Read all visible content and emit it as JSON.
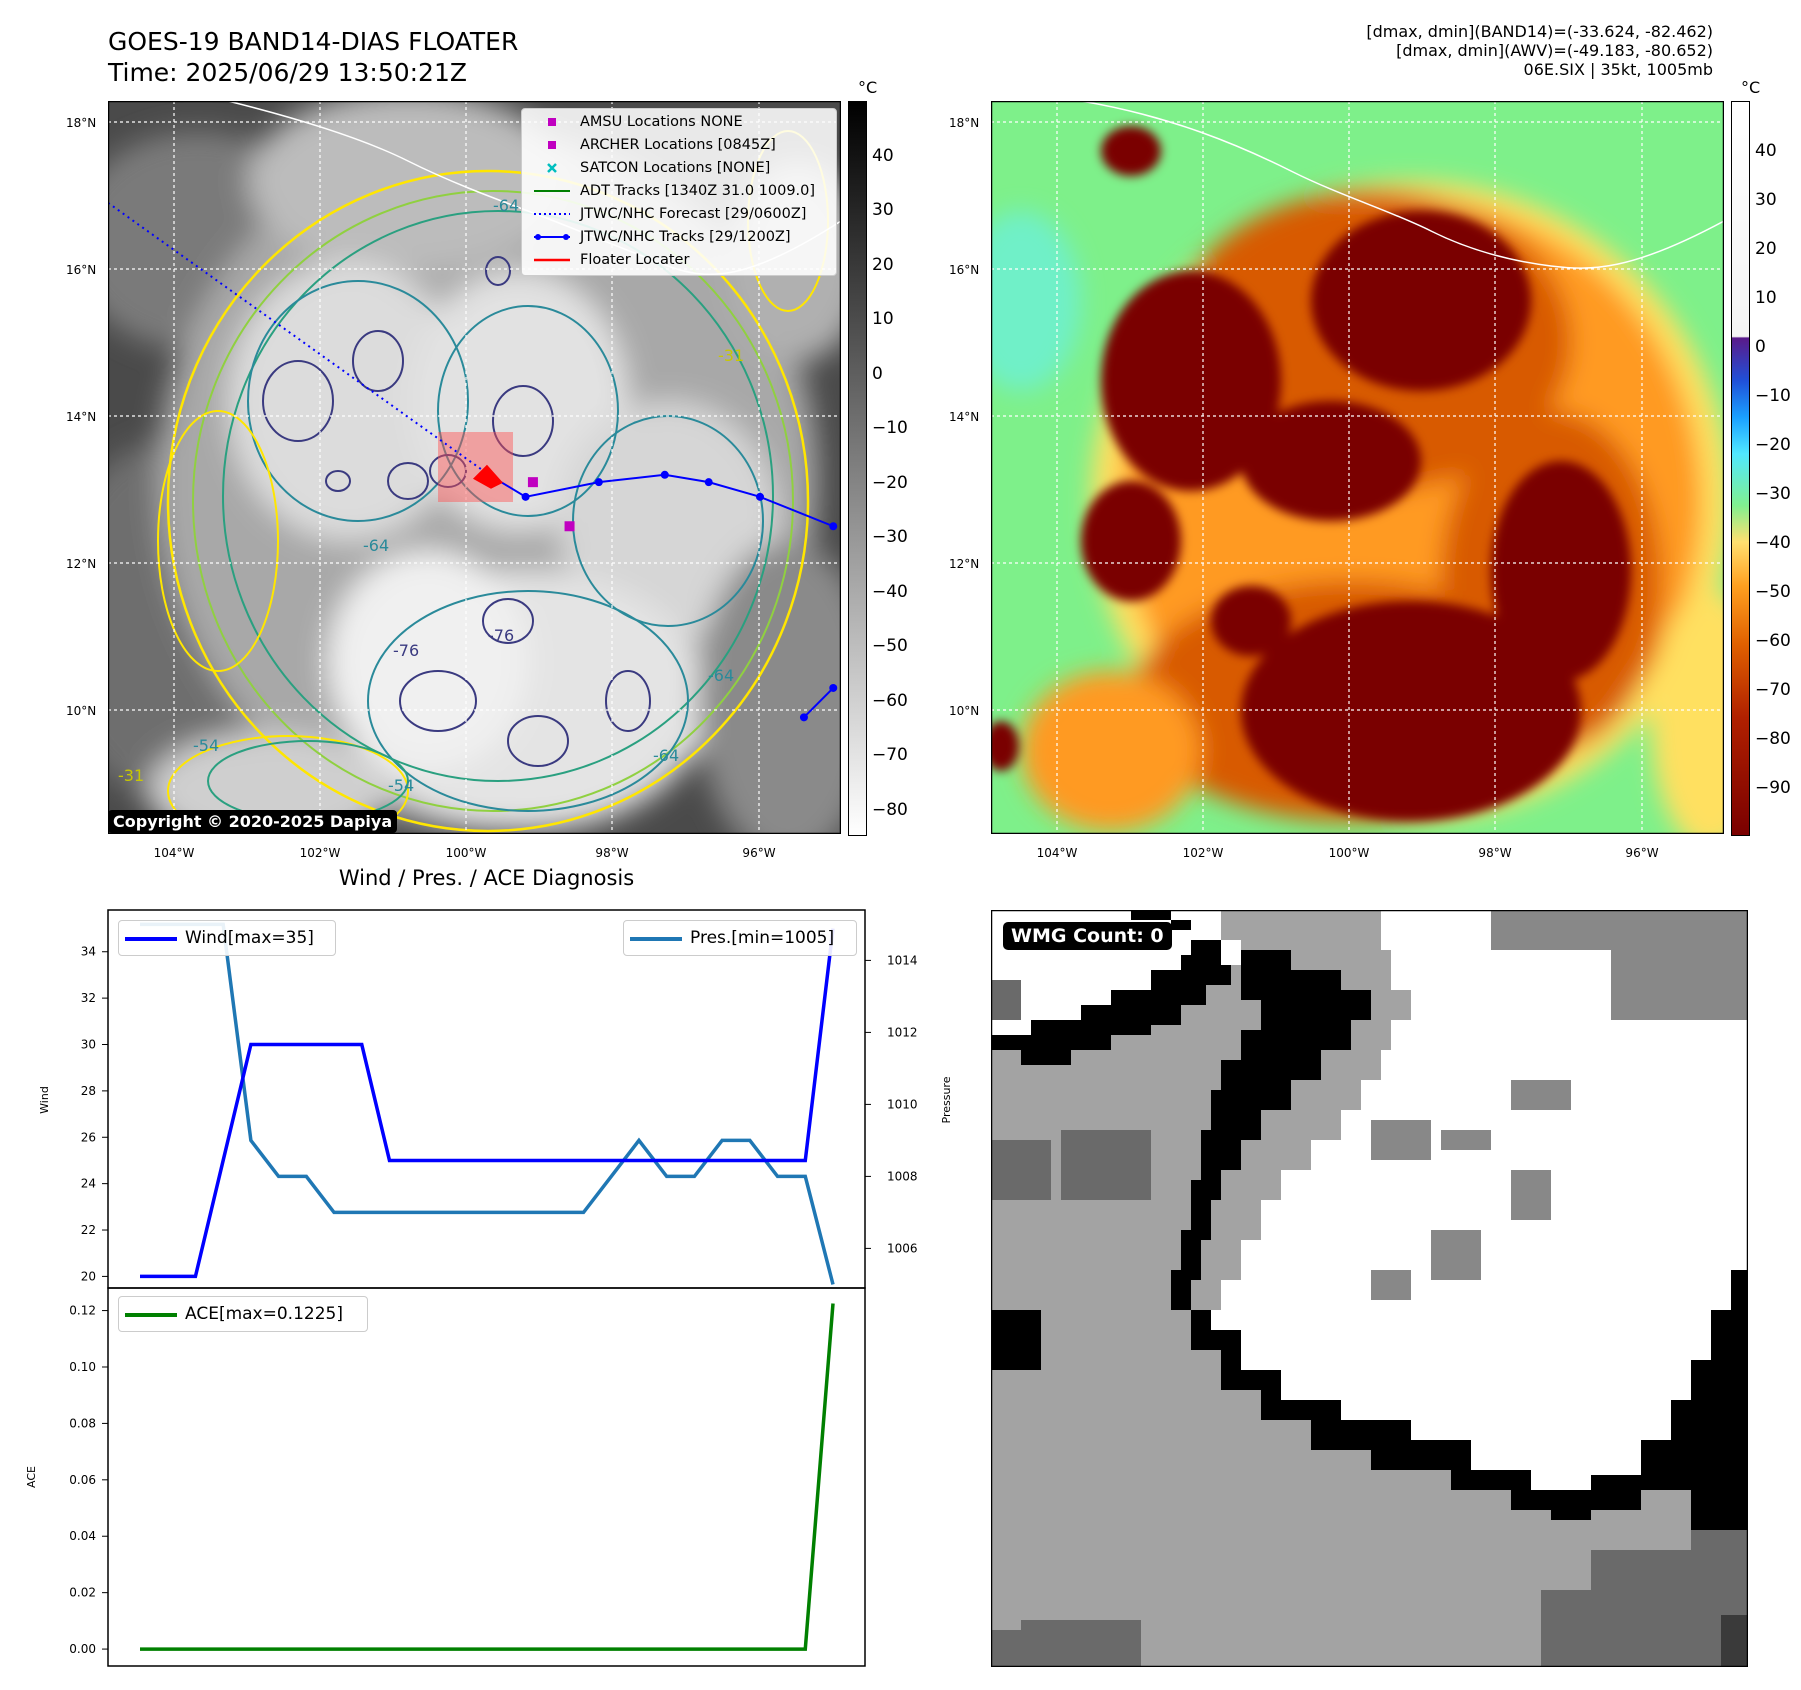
{
  "header": {
    "title_line1": "GOES-19 BAND14-DIAS FLOATER",
    "title_line2": "Time: 2025/06/29 13:50:21Z",
    "info_line1": "[dmax, dmin](BAND14)=(-33.624, -82.462)",
    "info_line2": "[dmax, dmin](AWV)=(-49.183, -80.652)",
    "info_line3": "06E.SIX | 35kt, 1005mb"
  },
  "map": {
    "lat_labels": [
      "18°N",
      "16°N",
      "14°N",
      "12°N",
      "10°N"
    ],
    "lon_labels": [
      "104°W",
      "102°W",
      "100°W",
      "98°W",
      "96°W"
    ],
    "copyright": "Copyright © 2020-2025 Dapiya",
    "legend": [
      {
        "label": "AMSU Locations NONE",
        "color": "#c000c0",
        "icon": "square-marker"
      },
      {
        "label": "ARCHER Locations [0845Z]",
        "color": "#c000c0",
        "icon": "square-marker"
      },
      {
        "label": "SATCON Locations [NONE]",
        "color": "#00bfbf",
        "icon": "x-marker"
      },
      {
        "label": "ADT Tracks [1340Z 31.0 1009.0]",
        "color": "#008000",
        "icon": "solid-line"
      },
      {
        "label": "JTWC/NHC Forecast [29/0600Z]",
        "color": "#0000ff",
        "icon": "dotted-line"
      },
      {
        "label": "JTWC/NHC Tracks [29/1200Z]",
        "color": "#0000ff",
        "icon": "line-with-dots"
      },
      {
        "label": "Floater Locater",
        "color": "#ff0000",
        "icon": "solid-line"
      }
    ],
    "contour_labels": [
      "-64",
      "-64",
      "-64",
      "-76",
      "-76",
      "-54",
      "-54",
      "-64",
      "-31",
      "-31"
    ],
    "jtwc_track": [
      {
        "lon": -99.7,
        "lat": 13.2
      },
      {
        "lon": -99.2,
        "lat": 12.9
      },
      {
        "lon": -98.2,
        "lat": 13.1
      },
      {
        "lon": -97.3,
        "lat": 13.2
      },
      {
        "lon": -96.7,
        "lat": 13.1
      },
      {
        "lon": -96.0,
        "lat": 12.9
      },
      {
        "lon": -95.0,
        "lat": 12.5
      }
    ],
    "jtwc_track2": [
      {
        "lon": -95.4,
        "lat": 9.9
      },
      {
        "lon": -95.0,
        "lat": 10.3
      }
    ],
    "forecast_track": [
      {
        "lon": -104.9,
        "lat": 16.9
      },
      {
        "lon": -99.7,
        "lat": 13.2
      }
    ],
    "archer_points": [
      {
        "lon": -99.1,
        "lat": 13.1
      },
      {
        "lon": -98.6,
        "lat": 12.5
      }
    ]
  },
  "colorbars": {
    "unit": "°C",
    "gray_ticks": [
      "40",
      "30",
      "20",
      "10",
      "0",
      "−10",
      "−20",
      "−30",
      "−40",
      "−50",
      "−60",
      "−70",
      "−80"
    ],
    "awv_ticks": [
      "40",
      "30",
      "20",
      "10",
      "0",
      "−10",
      "−20",
      "−30",
      "−40",
      "−50",
      "−60",
      "−70",
      "−80",
      "−90"
    ]
  },
  "chart_data": [
    {
      "type": "line",
      "title": "Wind / Pres. / ACE Diagnosis",
      "x": [
        0,
        1,
        2,
        3,
        4,
        5,
        6,
        7,
        8,
        9,
        10,
        11,
        12,
        13,
        14,
        15,
        16,
        17,
        18,
        19,
        20,
        21,
        22,
        23,
        24,
        25
      ],
      "series": [
        {
          "name": "Wind[max=35]",
          "axis": "left",
          "color": "#0000ff",
          "values": [
            20,
            20,
            20,
            25,
            30,
            30,
            30,
            30,
            30,
            25,
            25,
            25,
            25,
            25,
            25,
            25,
            25,
            25,
            25,
            25,
            25,
            25,
            25,
            25,
            25,
            35
          ]
        },
        {
          "name": "Pres.[min=1005]",
          "axis": "right",
          "color": "#1f77b4",
          "values": [
            1015,
            1015,
            1015,
            1015,
            1009,
            1008,
            1008,
            1007,
            1007,
            1007,
            1007,
            1007,
            1007,
            1007,
            1007,
            1007,
            1007,
            1008,
            1009,
            1008,
            1008,
            1009,
            1009,
            1008,
            1008,
            1005
          ]
        }
      ],
      "ylabel": "Wind",
      "y2label": "Pressure",
      "ylim": [
        19.5,
        35.8
      ],
      "y2lim": [
        1004.9,
        1015.4
      ],
      "yticks": [
        20,
        22,
        24,
        26,
        28,
        30,
        32,
        34
      ],
      "y2ticks": [
        1006,
        1008,
        1010,
        1012,
        1014
      ]
    },
    {
      "type": "line",
      "x": [
        0,
        1,
        2,
        3,
        4,
        5,
        6,
        7,
        8,
        9,
        10,
        11,
        12,
        13,
        14,
        15,
        16,
        17,
        18,
        19,
        20,
        21,
        22,
        23,
        24,
        25
      ],
      "series": [
        {
          "name": "ACE[max=0.1225]",
          "color": "#008000",
          "values": [
            0,
            0,
            0,
            0,
            0,
            0,
            0,
            0,
            0,
            0,
            0,
            0,
            0,
            0,
            0,
            0,
            0,
            0,
            0,
            0,
            0,
            0,
            0,
            0,
            0,
            0.1225
          ]
        }
      ],
      "ylabel": "ACE",
      "ylim": [
        -0.006,
        0.128
      ],
      "yticks": [
        0.0,
        0.02,
        0.04,
        0.06,
        0.08,
        0.1,
        0.12
      ]
    }
  ],
  "wmg": {
    "label": "WMG Count: 0"
  }
}
